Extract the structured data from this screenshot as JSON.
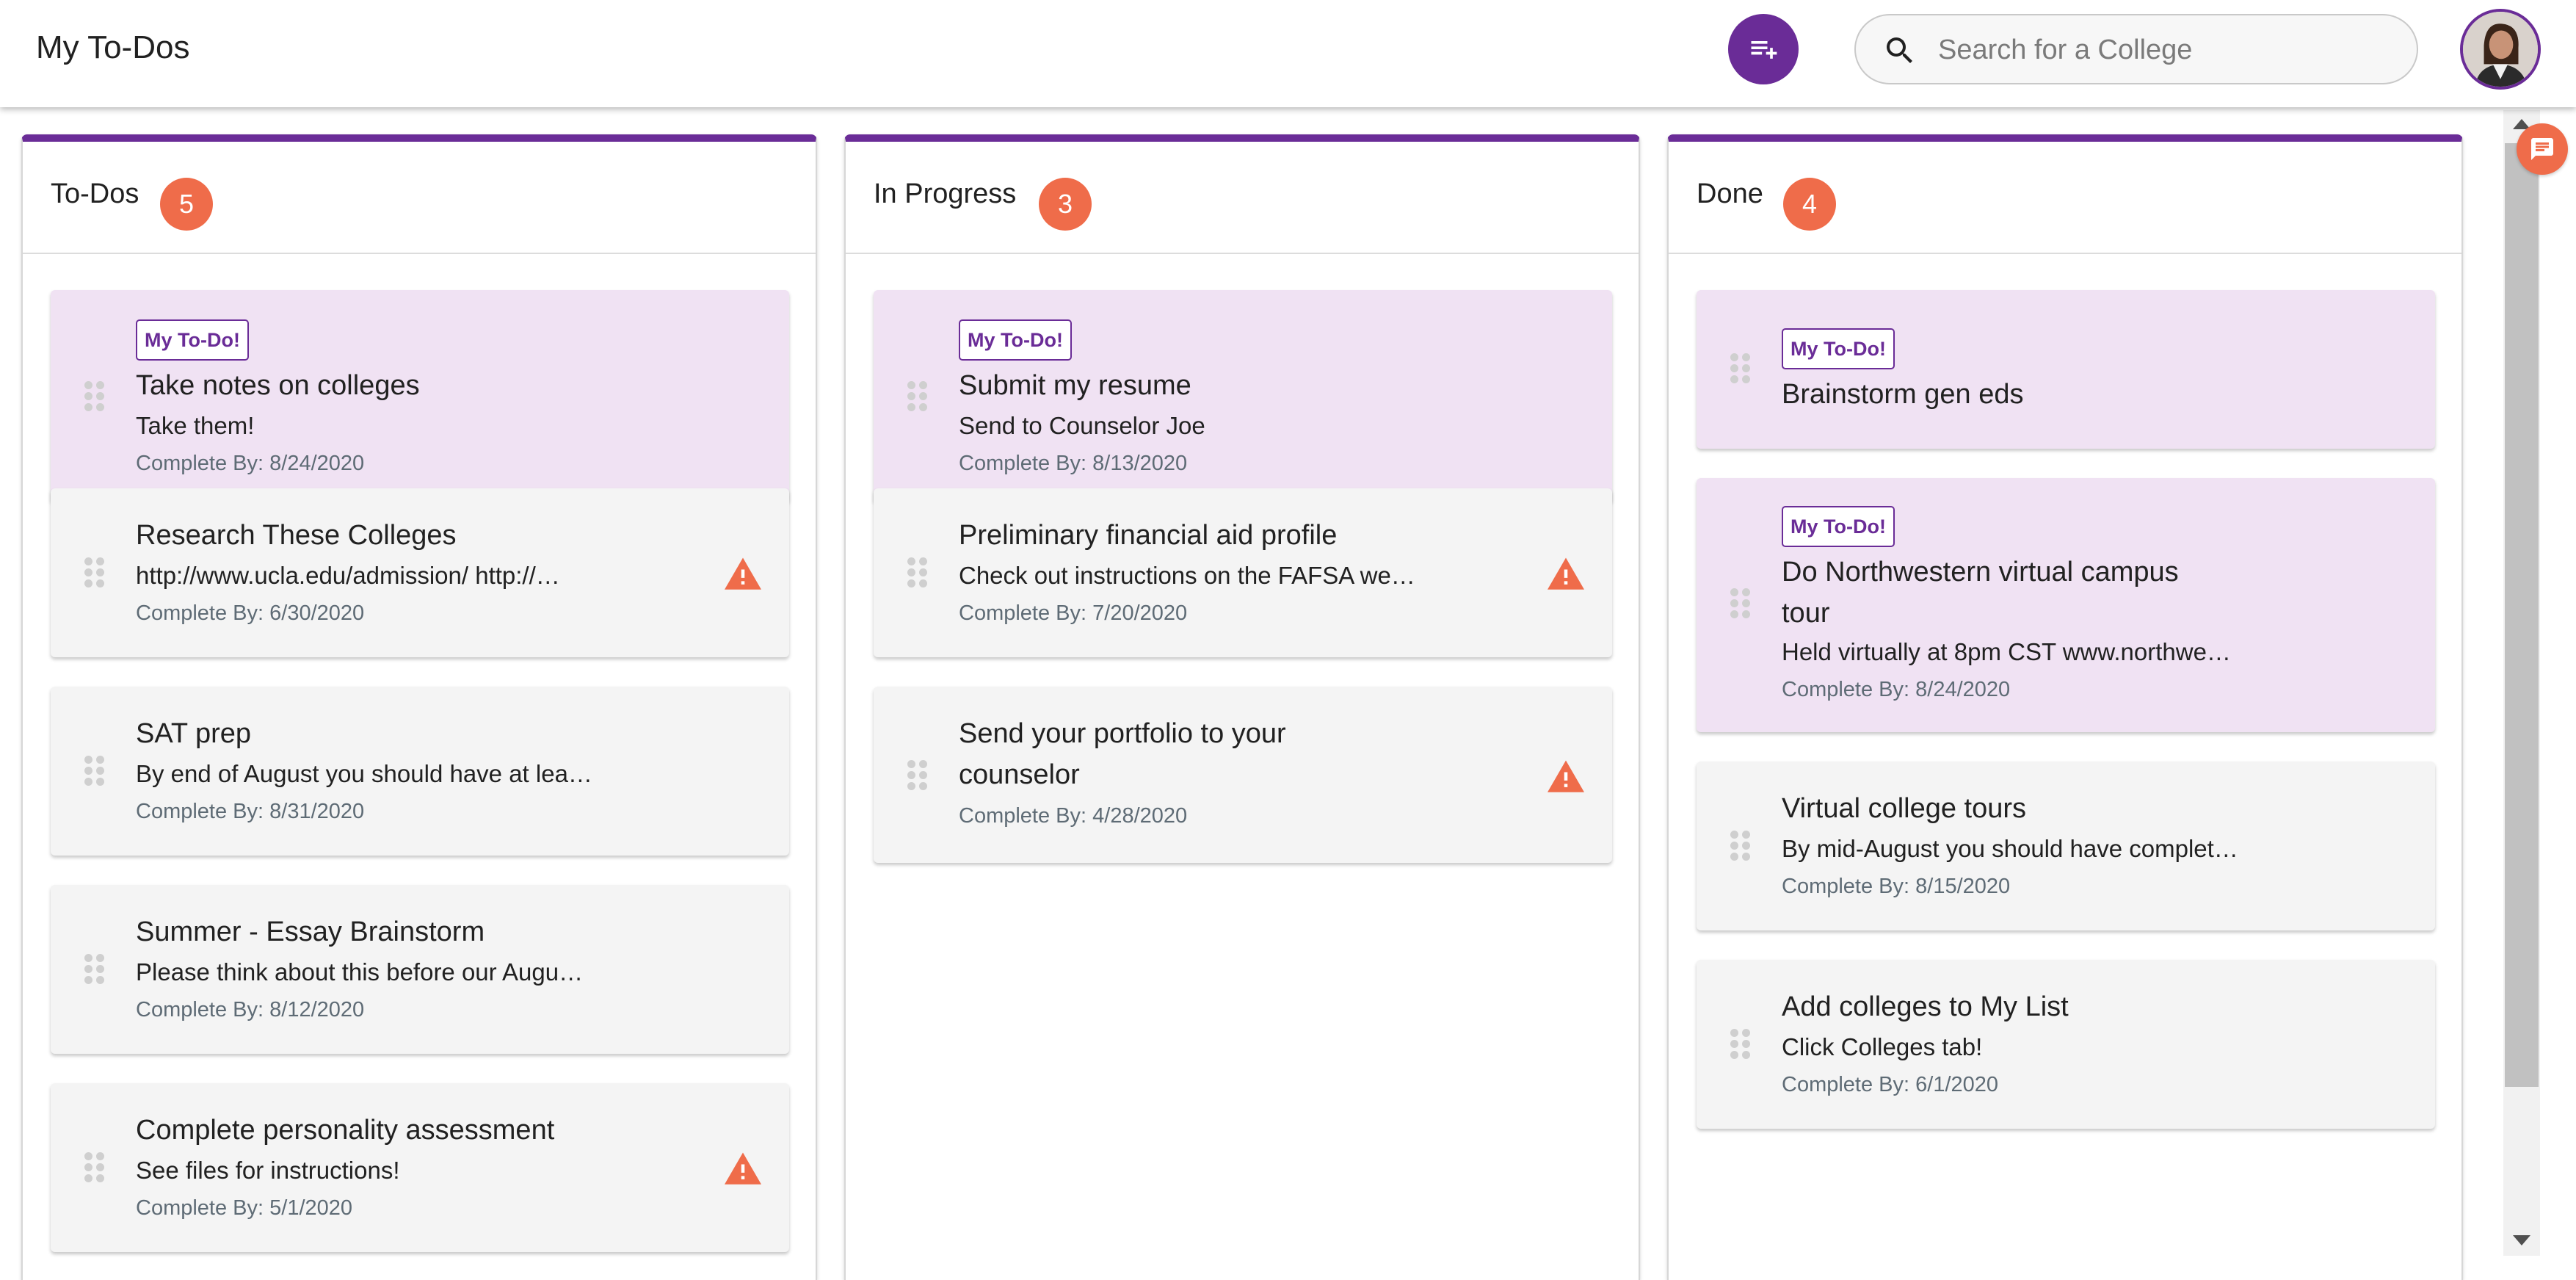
{
  "header": {
    "title": "My To-Dos",
    "add_todo_icon": "playlist-add-icon",
    "search_placeholder": "Search for a College",
    "search_value": "",
    "search_icon": "search-icon",
    "avatar_icon": "user-avatar"
  },
  "colors": {
    "brand_purple": "#6a2c97",
    "badge_orange": "#ef6c4a",
    "card_grey": "#f4f4f4",
    "card_mine": "#f0e2f3",
    "warning": "#ef6c4a"
  },
  "columns": [
    {
      "title": "To-Dos",
      "count": "5",
      "cards": [
        {
          "tag": "My To-Do!",
          "title": "Take notes on colleges",
          "desc": "Take them!",
          "date": "Complete By: 8/24/2020",
          "warning": false
        },
        {
          "tag": "",
          "title": "Research These Colleges",
          "desc": "http://www.ucla.edu/admission/ http://…",
          "date": "Complete By: 6/30/2020",
          "warning": true
        },
        {
          "tag": "",
          "title": "SAT prep",
          "desc": "By end of August you should have at lea…",
          "date": "Complete By: 8/31/2020",
          "warning": false
        },
        {
          "tag": "",
          "title": "Summer - Essay Brainstorm",
          "desc": "Please think about this before our Augu…",
          "date": "Complete By: 8/12/2020",
          "warning": false
        },
        {
          "tag": "",
          "title": "Complete personality assessment",
          "desc": "See files for instructions!",
          "date": "Complete By: 5/1/2020",
          "warning": true
        }
      ]
    },
    {
      "title": "In Progress",
      "count": "3",
      "cards": [
        {
          "tag": "My To-Do!",
          "title": "Submit my resume",
          "desc": "Send to Counselor Joe",
          "date": "Complete By: 8/13/2020",
          "warning": false
        },
        {
          "tag": "",
          "title": "Preliminary financial aid profile",
          "desc": "Check out instructions on the FAFSA we…",
          "date": "Complete By: 7/20/2020",
          "warning": true
        },
        {
          "tag": "",
          "title": "Send your portfolio to your counselor",
          "desc": "",
          "date": "Complete By: 4/28/2020",
          "warning": true
        }
      ]
    },
    {
      "title": "Done",
      "count": "4",
      "cards": [
        {
          "tag": "My To-Do!",
          "title": "Brainstorm gen eds",
          "desc": "",
          "date": "",
          "warning": false
        },
        {
          "tag": "My To-Do!",
          "title": "Do Northwestern virtual campus tour",
          "desc": "Held virtually at 8pm CST www.northwe…",
          "date": "Complete By: 8/24/2020",
          "warning": false
        },
        {
          "tag": "",
          "title": "Virtual college tours",
          "desc": "By mid-August you should have complet…",
          "date": "Complete By: 8/15/2020",
          "warning": false
        },
        {
          "tag": "",
          "title": "Add colleges to My List",
          "desc": "Click Colleges tab!",
          "date": "Complete By: 6/1/2020",
          "warning": false
        }
      ]
    }
  ],
  "chat_icon": "chat-bubble-icon"
}
